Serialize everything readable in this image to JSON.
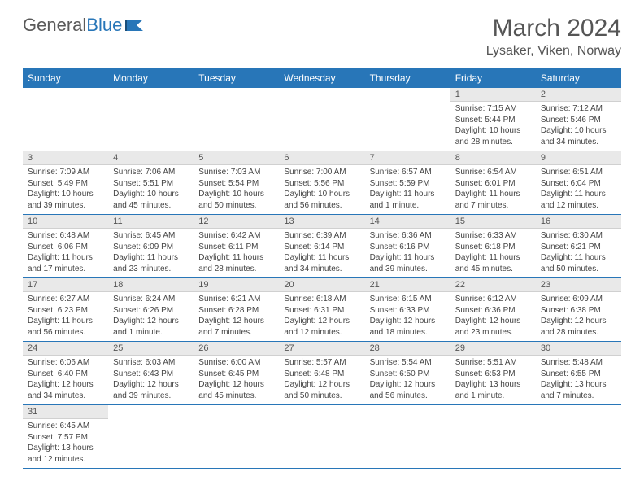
{
  "brand": {
    "name1": "General",
    "name2": "Blue"
  },
  "title": "March 2024",
  "location": "Lysaker, Viken, Norway",
  "colors": {
    "accent": "#2876b8",
    "header_bg": "#2876b8",
    "daynum_bg": "#e9e9e9",
    "text": "#444444"
  },
  "day_headers": [
    "Sunday",
    "Monday",
    "Tuesday",
    "Wednesday",
    "Thursday",
    "Friday",
    "Saturday"
  ],
  "weeks": [
    [
      {
        "n": "",
        "sr": "",
        "ss": "",
        "dl": ""
      },
      {
        "n": "",
        "sr": "",
        "ss": "",
        "dl": ""
      },
      {
        "n": "",
        "sr": "",
        "ss": "",
        "dl": ""
      },
      {
        "n": "",
        "sr": "",
        "ss": "",
        "dl": ""
      },
      {
        "n": "",
        "sr": "",
        "ss": "",
        "dl": ""
      },
      {
        "n": "1",
        "sr": "Sunrise: 7:15 AM",
        "ss": "Sunset: 5:44 PM",
        "dl": "Daylight: 10 hours and 28 minutes."
      },
      {
        "n": "2",
        "sr": "Sunrise: 7:12 AM",
        "ss": "Sunset: 5:46 PM",
        "dl": "Daylight: 10 hours and 34 minutes."
      }
    ],
    [
      {
        "n": "3",
        "sr": "Sunrise: 7:09 AM",
        "ss": "Sunset: 5:49 PM",
        "dl": "Daylight: 10 hours and 39 minutes."
      },
      {
        "n": "4",
        "sr": "Sunrise: 7:06 AM",
        "ss": "Sunset: 5:51 PM",
        "dl": "Daylight: 10 hours and 45 minutes."
      },
      {
        "n": "5",
        "sr": "Sunrise: 7:03 AM",
        "ss": "Sunset: 5:54 PM",
        "dl": "Daylight: 10 hours and 50 minutes."
      },
      {
        "n": "6",
        "sr": "Sunrise: 7:00 AM",
        "ss": "Sunset: 5:56 PM",
        "dl": "Daylight: 10 hours and 56 minutes."
      },
      {
        "n": "7",
        "sr": "Sunrise: 6:57 AM",
        "ss": "Sunset: 5:59 PM",
        "dl": "Daylight: 11 hours and 1 minute."
      },
      {
        "n": "8",
        "sr": "Sunrise: 6:54 AM",
        "ss": "Sunset: 6:01 PM",
        "dl": "Daylight: 11 hours and 7 minutes."
      },
      {
        "n": "9",
        "sr": "Sunrise: 6:51 AM",
        "ss": "Sunset: 6:04 PM",
        "dl": "Daylight: 11 hours and 12 minutes."
      }
    ],
    [
      {
        "n": "10",
        "sr": "Sunrise: 6:48 AM",
        "ss": "Sunset: 6:06 PM",
        "dl": "Daylight: 11 hours and 17 minutes."
      },
      {
        "n": "11",
        "sr": "Sunrise: 6:45 AM",
        "ss": "Sunset: 6:09 PM",
        "dl": "Daylight: 11 hours and 23 minutes."
      },
      {
        "n": "12",
        "sr": "Sunrise: 6:42 AM",
        "ss": "Sunset: 6:11 PM",
        "dl": "Daylight: 11 hours and 28 minutes."
      },
      {
        "n": "13",
        "sr": "Sunrise: 6:39 AM",
        "ss": "Sunset: 6:14 PM",
        "dl": "Daylight: 11 hours and 34 minutes."
      },
      {
        "n": "14",
        "sr": "Sunrise: 6:36 AM",
        "ss": "Sunset: 6:16 PM",
        "dl": "Daylight: 11 hours and 39 minutes."
      },
      {
        "n": "15",
        "sr": "Sunrise: 6:33 AM",
        "ss": "Sunset: 6:18 PM",
        "dl": "Daylight: 11 hours and 45 minutes."
      },
      {
        "n": "16",
        "sr": "Sunrise: 6:30 AM",
        "ss": "Sunset: 6:21 PM",
        "dl": "Daylight: 11 hours and 50 minutes."
      }
    ],
    [
      {
        "n": "17",
        "sr": "Sunrise: 6:27 AM",
        "ss": "Sunset: 6:23 PM",
        "dl": "Daylight: 11 hours and 56 minutes."
      },
      {
        "n": "18",
        "sr": "Sunrise: 6:24 AM",
        "ss": "Sunset: 6:26 PM",
        "dl": "Daylight: 12 hours and 1 minute."
      },
      {
        "n": "19",
        "sr": "Sunrise: 6:21 AM",
        "ss": "Sunset: 6:28 PM",
        "dl": "Daylight: 12 hours and 7 minutes."
      },
      {
        "n": "20",
        "sr": "Sunrise: 6:18 AM",
        "ss": "Sunset: 6:31 PM",
        "dl": "Daylight: 12 hours and 12 minutes."
      },
      {
        "n": "21",
        "sr": "Sunrise: 6:15 AM",
        "ss": "Sunset: 6:33 PM",
        "dl": "Daylight: 12 hours and 18 minutes."
      },
      {
        "n": "22",
        "sr": "Sunrise: 6:12 AM",
        "ss": "Sunset: 6:36 PM",
        "dl": "Daylight: 12 hours and 23 minutes."
      },
      {
        "n": "23",
        "sr": "Sunrise: 6:09 AM",
        "ss": "Sunset: 6:38 PM",
        "dl": "Daylight: 12 hours and 28 minutes."
      }
    ],
    [
      {
        "n": "24",
        "sr": "Sunrise: 6:06 AM",
        "ss": "Sunset: 6:40 PM",
        "dl": "Daylight: 12 hours and 34 minutes."
      },
      {
        "n": "25",
        "sr": "Sunrise: 6:03 AM",
        "ss": "Sunset: 6:43 PM",
        "dl": "Daylight: 12 hours and 39 minutes."
      },
      {
        "n": "26",
        "sr": "Sunrise: 6:00 AM",
        "ss": "Sunset: 6:45 PM",
        "dl": "Daylight: 12 hours and 45 minutes."
      },
      {
        "n": "27",
        "sr": "Sunrise: 5:57 AM",
        "ss": "Sunset: 6:48 PM",
        "dl": "Daylight: 12 hours and 50 minutes."
      },
      {
        "n": "28",
        "sr": "Sunrise: 5:54 AM",
        "ss": "Sunset: 6:50 PM",
        "dl": "Daylight: 12 hours and 56 minutes."
      },
      {
        "n": "29",
        "sr": "Sunrise: 5:51 AM",
        "ss": "Sunset: 6:53 PM",
        "dl": "Daylight: 13 hours and 1 minute."
      },
      {
        "n": "30",
        "sr": "Sunrise: 5:48 AM",
        "ss": "Sunset: 6:55 PM",
        "dl": "Daylight: 13 hours and 7 minutes."
      }
    ],
    [
      {
        "n": "31",
        "sr": "Sunrise: 6:45 AM",
        "ss": "Sunset: 7:57 PM",
        "dl": "Daylight: 13 hours and 12 minutes."
      },
      {
        "n": "",
        "sr": "",
        "ss": "",
        "dl": ""
      },
      {
        "n": "",
        "sr": "",
        "ss": "",
        "dl": ""
      },
      {
        "n": "",
        "sr": "",
        "ss": "",
        "dl": ""
      },
      {
        "n": "",
        "sr": "",
        "ss": "",
        "dl": ""
      },
      {
        "n": "",
        "sr": "",
        "ss": "",
        "dl": ""
      },
      {
        "n": "",
        "sr": "",
        "ss": "",
        "dl": ""
      }
    ]
  ]
}
